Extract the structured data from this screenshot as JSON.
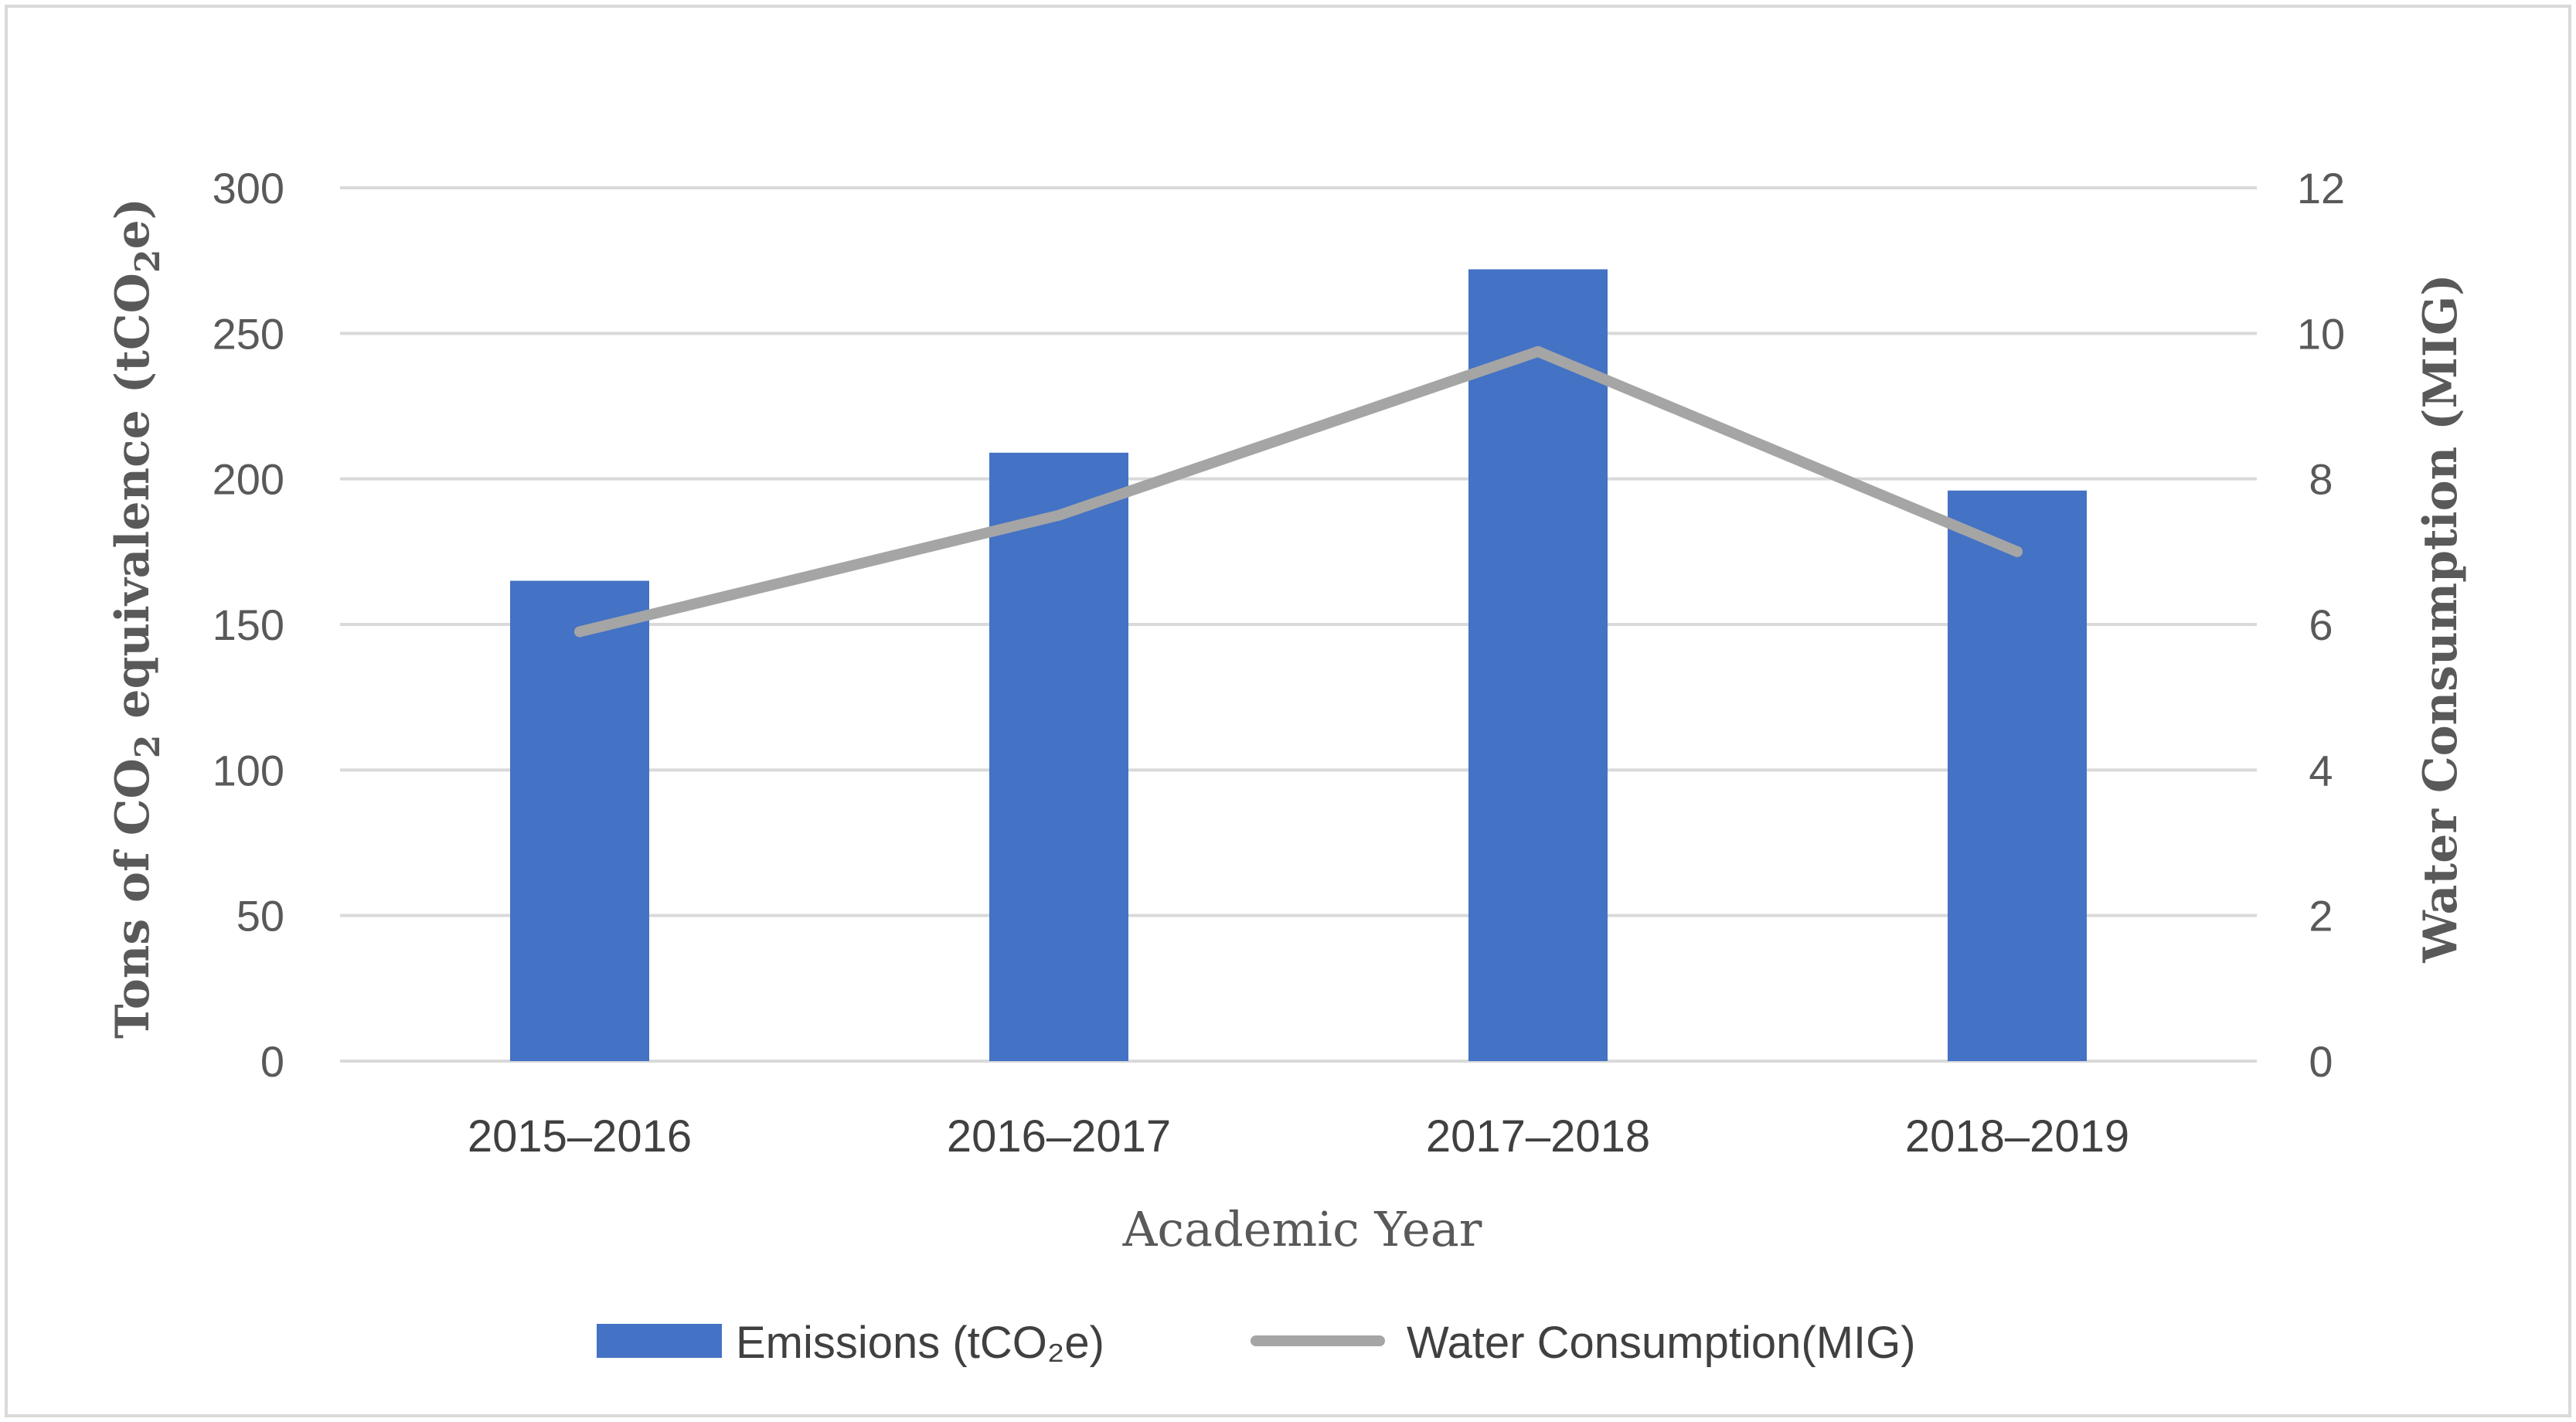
{
  "chart_data": {
    "type": "bar",
    "title": "",
    "categories": [
      "2015–2016",
      "2016–2017",
      "2017–2018",
      "2018–2019"
    ],
    "series": [
      {
        "name": "Emissions (tCO₂e)",
        "type": "bar",
        "axis": "left",
        "color": "#4472C4",
        "values": [
          165,
          209,
          272,
          196
        ]
      },
      {
        "name": "Water Consumption(MIG)",
        "type": "line",
        "axis": "right",
        "color": "#A5A5A5",
        "values": [
          5.9,
          7.5,
          9.75,
          7.0
        ]
      }
    ],
    "xlabel": "Academic Year",
    "ylabel": {
      "prefix": "Tons of CO",
      "sub1": "2",
      "middle": " equivalence (tCO",
      "sub2": "2",
      "suffix": "e)"
    },
    "y2label": "Water Consumption (MIG)",
    "ylim": [
      0,
      300
    ],
    "y2lim": [
      0,
      12
    ],
    "yticks": [
      "0",
      "50",
      "100",
      "150",
      "200",
      "250",
      "300"
    ],
    "y2ticks": [
      "0",
      "2",
      "4",
      "6",
      "8",
      "10",
      "12"
    ],
    "grid": true,
    "legend_position": "bottom"
  }
}
